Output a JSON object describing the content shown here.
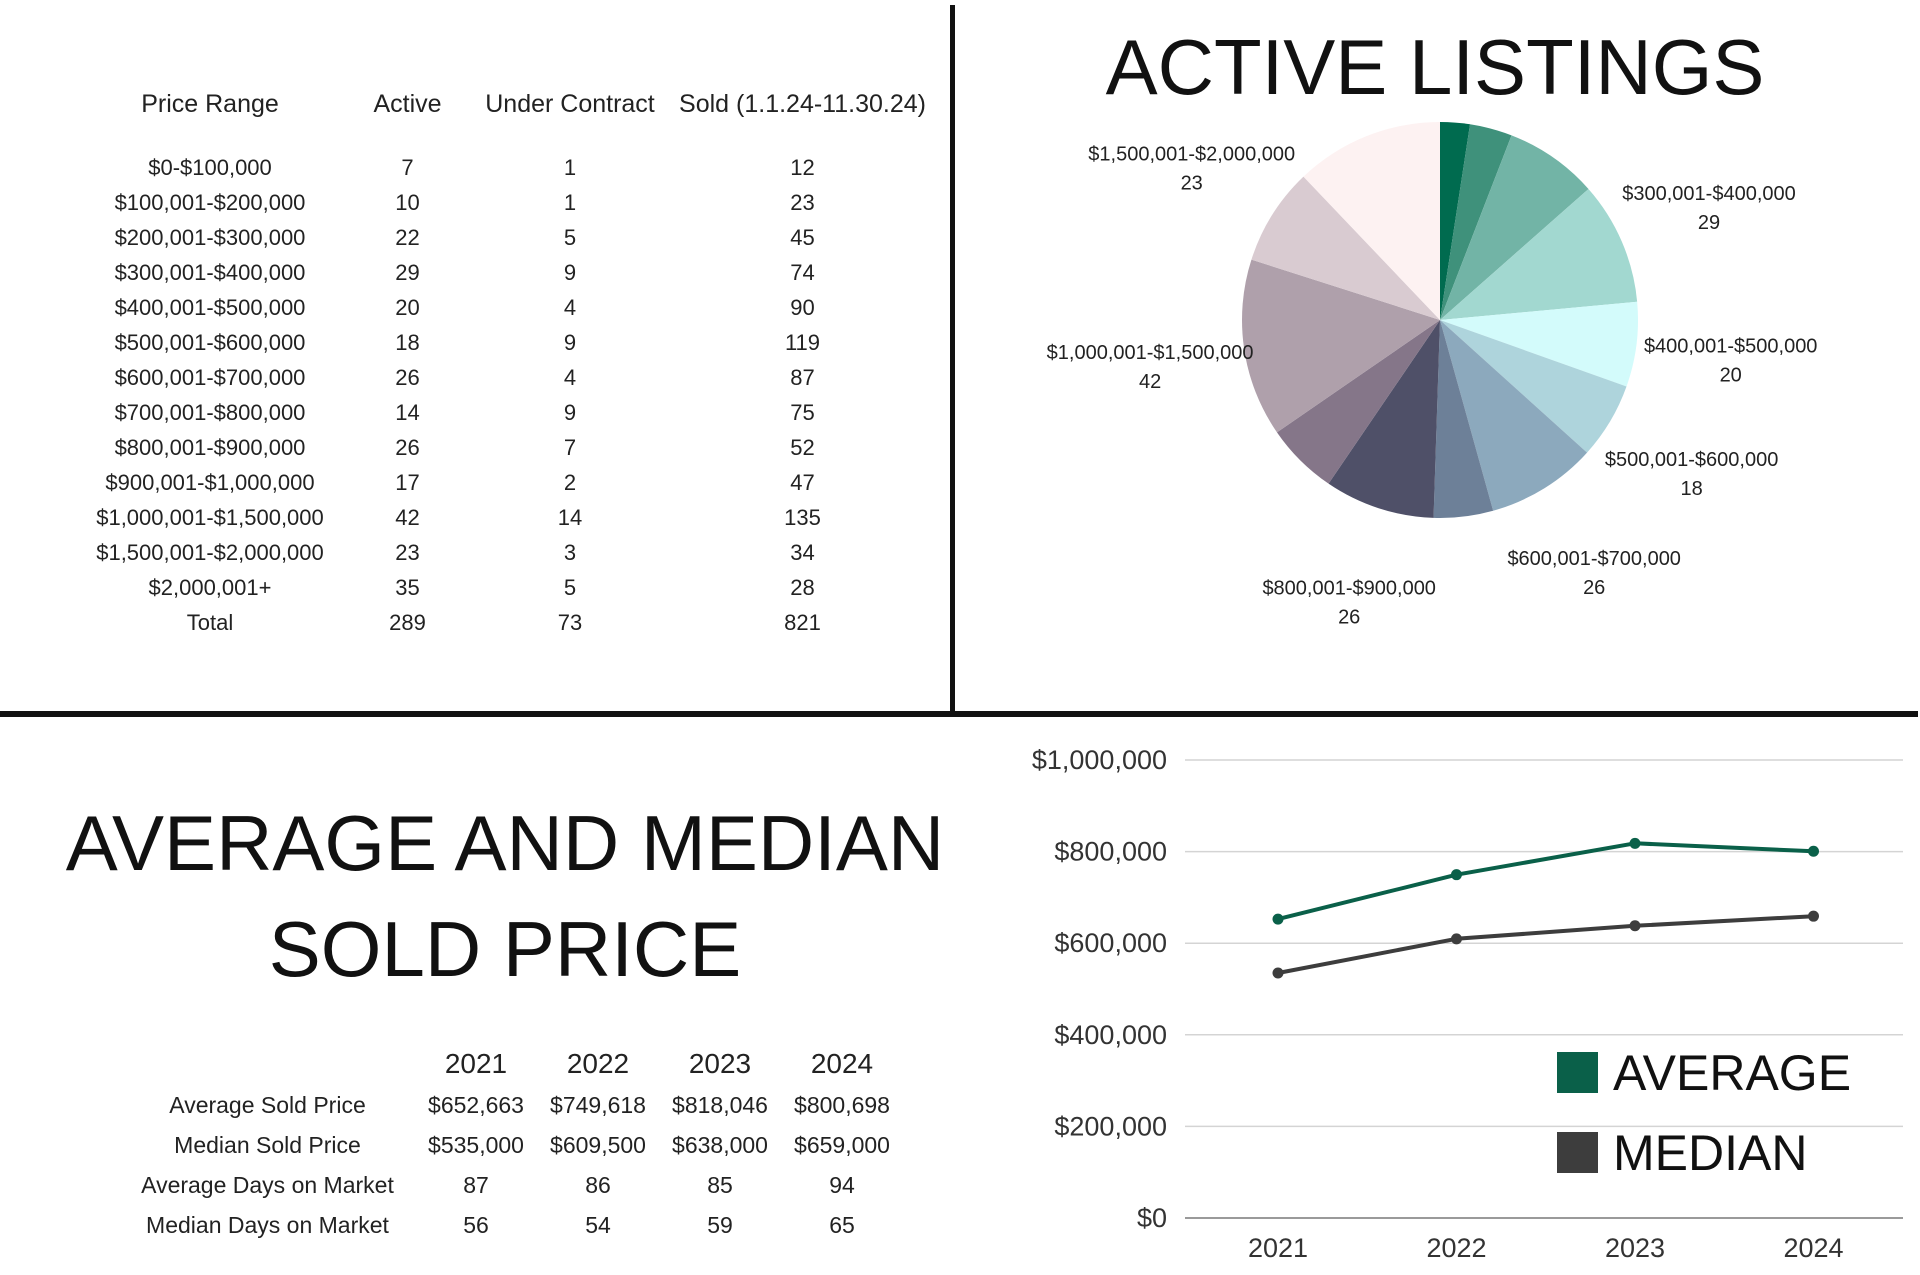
{
  "range_table": {
    "headers": [
      "Price Range",
      "Active",
      "Under Contract",
      "Sold (1.1.24-11.30.24)"
    ],
    "rows": [
      [
        "$0-$100,000",
        "7",
        "1",
        "12"
      ],
      [
        "$100,001-$200,000",
        "10",
        "1",
        "23"
      ],
      [
        "$200,001-$300,000",
        "22",
        "5",
        "45"
      ],
      [
        "$300,001-$400,000",
        "29",
        "9",
        "74"
      ],
      [
        "$400,001-$500,000",
        "20",
        "4",
        "90"
      ],
      [
        "$500,001-$600,000",
        "18",
        "9",
        "119"
      ],
      [
        "$600,001-$700,000",
        "26",
        "4",
        "87"
      ],
      [
        "$700,001-$800,000",
        "14",
        "9",
        "75"
      ],
      [
        "$800,001-$900,000",
        "26",
        "7",
        "52"
      ],
      [
        "$900,001-$1,000,000",
        "17",
        "2",
        "47"
      ],
      [
        "$1,000,001-$1,500,000",
        "42",
        "14",
        "135"
      ],
      [
        "$1,500,001-$2,000,000",
        "23",
        "3",
        "34"
      ],
      [
        "$2,000,001+",
        "35",
        "5",
        "28"
      ],
      [
        "Total",
        "289",
        "73",
        "821"
      ]
    ]
  },
  "sold_section": {
    "title_line1": "AVERAGE AND MEDIAN",
    "title_line2": "SOLD PRICE",
    "stats": {
      "years": [
        "2021",
        "2022",
        "2023",
        "2024"
      ],
      "rows": [
        {
          "label": "Average Sold Price",
          "values": [
            "$652,663",
            "$749,618",
            "$818,046",
            "$800,698"
          ]
        },
        {
          "label": "Median Sold Price",
          "values": [
            "$535,000",
            "$609,500",
            "$638,000",
            "$659,000"
          ]
        },
        {
          "label": "Average Days on Market",
          "values": [
            "87",
            "86",
            "85",
            "94"
          ]
        },
        {
          "label": "Median Days on Market",
          "values": [
            "56",
            "54",
            "59",
            "65"
          ]
        }
      ]
    }
  },
  "chart_data": [
    {
      "type": "pie",
      "title": "ACTIVE LISTINGS",
      "slices": [
        {
          "label": "$0-$100,000",
          "value": 7,
          "color": "#006b4f",
          "show_label": false
        },
        {
          "label": "$100,001-$200,000",
          "value": 10,
          "color": "#3f917b",
          "show_label": false
        },
        {
          "label": "$200,001-$300,000",
          "value": 22,
          "color": "#72b4a6",
          "show_label": true
        },
        {
          "label": "$300,001-$400,000",
          "value": 29,
          "color": "#a2d8d0",
          "show_label": true
        },
        {
          "label": "$400,001-$500,000",
          "value": 20,
          "color": "#d3fbfb",
          "show_label": true
        },
        {
          "label": "$500,001-$600,000",
          "value": 18,
          "color": "#aed4dc",
          "show_label": true
        },
        {
          "label": "$600,001-$700,000",
          "value": 26,
          "color": "#8ca9bd",
          "show_label": true
        },
        {
          "label": "$700,001-$800,000",
          "value": 14,
          "color": "#6d8098",
          "show_label": false
        },
        {
          "label": "$800,001-$900,000",
          "value": 26,
          "color": "#4f5068",
          "show_label": true
        },
        {
          "label": "$900,001-$1,000,000",
          "value": 17,
          "color": "#857689",
          "show_label": false
        },
        {
          "label": "$1,000,001-$1,500,000",
          "value": 42,
          "color": "#afa0ab",
          "show_label": true
        },
        {
          "label": "$1,500,001-$2,000,000",
          "value": 23,
          "color": "#d9cbd1",
          "show_label": true
        },
        {
          "label": "$2,000,001+",
          "value": 35,
          "color": "#fdf2f2",
          "show_label": true
        }
      ]
    },
    {
      "type": "line",
      "title": "",
      "xlabel": "",
      "ylabel": "",
      "categories": [
        "2021",
        "2022",
        "2023",
        "2024"
      ],
      "ylim": [
        0,
        1000000
      ],
      "yticks": [
        0,
        200000,
        400000,
        600000,
        800000,
        1000000
      ],
      "ytick_labels": [
        "$0",
        "$200,000",
        "$400,000",
        "$600,000",
        "$800,000",
        "$1,000,000"
      ],
      "grid": true,
      "legend_position": "bottom-right",
      "series": [
        {
          "name": "AVERAGE",
          "values": [
            652663,
            749618,
            818046,
            800698
          ],
          "color": "#0a6049"
        },
        {
          "name": "MEDIAN",
          "values": [
            535000,
            609500,
            638000,
            659000
          ],
          "color": "#3d3d3d"
        }
      ]
    }
  ]
}
